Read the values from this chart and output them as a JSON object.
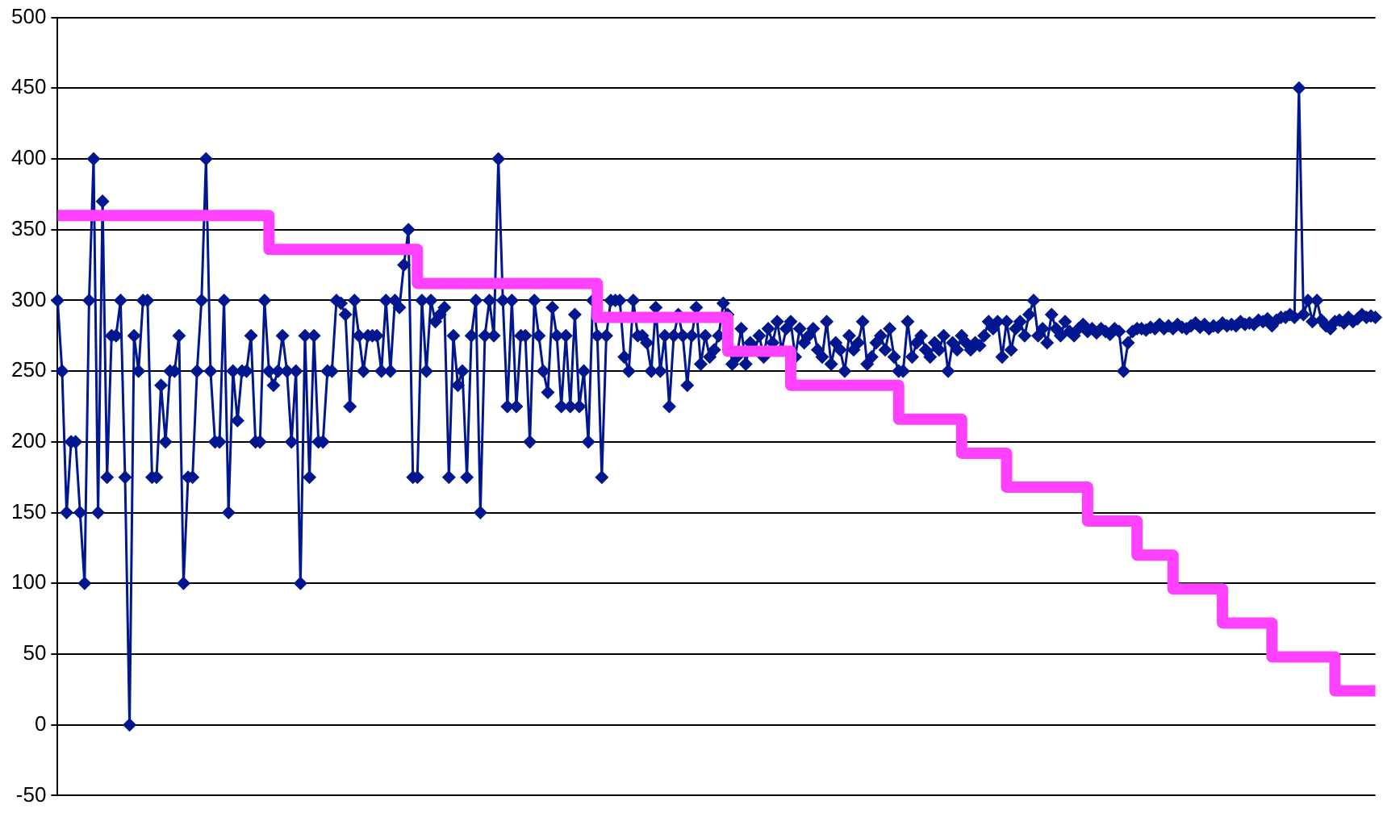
{
  "chart_data": {
    "type": "line",
    "ylim": [
      -50,
      500
    ],
    "yticks": [
      -50,
      0,
      50,
      100,
      150,
      200,
      250,
      300,
      350,
      400,
      450,
      500
    ],
    "grid": "y",
    "legend": false,
    "tick_labels": "y",
    "categories": [
      null,
      null,
      null,
      null,
      null,
      null,
      null,
      null,
      null,
      null,
      null,
      null,
      null,
      null,
      null,
      null,
      null,
      null,
      null,
      null,
      null,
      null,
      null,
      null,
      null,
      null,
      null,
      null,
      null,
      null,
      null,
      null,
      null,
      null,
      null,
      null,
      null,
      null,
      null,
      null,
      null,
      null,
      null,
      null,
      null,
      null,
      null,
      null,
      null,
      null,
      null,
      null,
      null,
      null,
      null,
      null,
      null,
      null,
      null,
      null,
      null,
      null,
      null,
      null,
      null,
      null,
      null,
      null,
      null,
      null,
      null,
      null,
      null,
      null,
      null,
      null,
      null,
      null,
      null,
      null,
      null,
      null,
      null,
      null,
      null,
      null,
      null,
      null,
      null,
      null,
      null,
      null,
      null,
      null,
      null,
      null,
      null,
      null,
      null,
      null,
      null,
      null,
      null,
      null,
      null,
      null,
      null,
      null,
      null,
      null,
      null,
      null,
      null,
      null,
      null,
      null,
      null,
      null,
      null,
      null,
      null,
      null,
      null,
      null,
      null,
      null,
      null,
      null,
      null,
      null,
      null,
      null,
      null,
      null,
      null,
      null,
      null,
      null,
      null,
      null,
      null,
      null,
      null,
      null,
      null,
      null,
      null,
      null,
      null,
      null,
      null,
      null,
      null,
      null,
      null,
      null,
      null,
      null,
      null,
      null,
      null,
      null,
      null,
      null,
      null,
      null,
      null,
      null,
      null,
      null,
      null,
      null,
      null,
      null,
      null,
      null,
      null,
      null,
      null,
      null,
      null,
      null,
      null,
      null,
      null,
      null,
      null,
      null,
      null,
      null,
      null,
      null,
      null,
      null,
      null,
      null,
      null,
      null,
      null,
      null,
      null,
      null,
      null,
      null,
      null,
      null,
      null,
      null,
      null,
      null,
      null,
      null,
      null,
      null,
      null,
      null,
      null,
      null,
      null,
      null,
      null,
      null,
      null,
      null,
      null,
      null,
      null,
      null,
      null,
      null,
      null,
      null,
      null,
      null,
      null,
      null,
      null,
      null,
      null,
      null,
      null,
      null,
      null,
      null,
      null,
      null,
      null,
      null,
      null,
      null,
      null,
      null,
      null,
      null,
      null,
      null,
      null,
      null,
      null,
      null,
      null,
      null,
      null,
      null,
      null,
      null,
      null,
      null,
      null,
      null,
      null,
      null,
      null,
      null,
      null,
      null,
      null,
      null,
      null,
      null,
      null,
      null,
      null,
      null,
      null,
      null,
      null,
      null,
      null,
      null,
      null,
      null,
      null,
      null
    ],
    "series": [
      {
        "color": "#00178f",
        "marker": "diamond",
        "line_style": "solid",
        "values": [
          300,
          250,
          150,
          200,
          200,
          150,
          100,
          300,
          400,
          150,
          370,
          175,
          275,
          275,
          300,
          175,
          0,
          275,
          250,
          300,
          300,
          175,
          175,
          240,
          200,
          250,
          250,
          275,
          100,
          175,
          175,
          250,
          300,
          400,
          250,
          200,
          200,
          300,
          150,
          250,
          215,
          250,
          250,
          275,
          200,
          200,
          300,
          250,
          240,
          250,
          275,
          250,
          200,
          250,
          100,
          275,
          175,
          275,
          200,
          200,
          250,
          250,
          300,
          298,
          290,
          225,
          300,
          275,
          250,
          275,
          275,
          275,
          250,
          300,
          250,
          300,
          295,
          325,
          350,
          175,
          175,
          300,
          250,
          300,
          285,
          290,
          295,
          175,
          275,
          240,
          250,
          175,
          275,
          300,
          150,
          275,
          300,
          275,
          400,
          300,
          225,
          300,
          225,
          275,
          275,
          200,
          300,
          275,
          250,
          235,
          295,
          275,
          225,
          275,
          225,
          290,
          225,
          250,
          200,
          300,
          275,
          175,
          275,
          300,
          300,
          300,
          260,
          250,
          300,
          275,
          275,
          270,
          250,
          295,
          250,
          275,
          225,
          275,
          290,
          275,
          240,
          275,
          295,
          255,
          275,
          260,
          265,
          275,
          298,
          290,
          255,
          260,
          280,
          255,
          270,
          265,
          275,
          260,
          280,
          270,
          285,
          265,
          280,
          285,
          260,
          280,
          270,
          275,
          280,
          265,
          260,
          285,
          255,
          270,
          265,
          250,
          275,
          265,
          270,
          285,
          255,
          260,
          270,
          275,
          265,
          280,
          260,
          250,
          250,
          285,
          260,
          270,
          275,
          265,
          260,
          270,
          265,
          275,
          250,
          270,
          265,
          275,
          270,
          265,
          270,
          268,
          275,
          285,
          280,
          285,
          260,
          285,
          265,
          280,
          285,
          275,
          290,
          300,
          275,
          280,
          270,
          290,
          280,
          275,
          285,
          278,
          275,
          280,
          283,
          278,
          280,
          277,
          280,
          278,
          276,
          280,
          278,
          250,
          270,
          278,
          280,
          280,
          279,
          281,
          280,
          283,
          280,
          282,
          280,
          283,
          281,
          280,
          282,
          284,
          281,
          283,
          280,
          282,
          281,
          284,
          282,
          283,
          282,
          285,
          283,
          284,
          283,
          286,
          285,
          287,
          282,
          286,
          288,
          288,
          290,
          288,
          450,
          290,
          300,
          285,
          300,
          286,
          282,
          280,
          285,
          286,
          284,
          288,
          285,
          287,
          290,
          288,
          289,
          288
        ]
      },
      {
        "type": "step",
        "color": "#ff40ff",
        "marker": "none",
        "line_style": "solid",
        "values": [
          360,
          360,
          360,
          360,
          360,
          360,
          360,
          360,
          360,
          360,
          360,
          360,
          360,
          360,
          360,
          360,
          360,
          360,
          360,
          360,
          360,
          360,
          360,
          360,
          360,
          360,
          360,
          360,
          360,
          360,
          360,
          360,
          360,
          360,
          360,
          360,
          360,
          360,
          360,
          360,
          360,
          360,
          360,
          360,
          360,
          360,
          360,
          360,
          336,
          336,
          336,
          336,
          336,
          336,
          336,
          336,
          336,
          336,
          336,
          336,
          336,
          336,
          336,
          336,
          336,
          336,
          336,
          336,
          336,
          336,
          336,
          336,
          336,
          336,
          336,
          336,
          336,
          336,
          336,
          336,
          336,
          312,
          312,
          312,
          312,
          312,
          312,
          312,
          312,
          312,
          312,
          312,
          312,
          312,
          312,
          312,
          312,
          312,
          312,
          312,
          312,
          312,
          312,
          312,
          312,
          312,
          312,
          312,
          312,
          312,
          312,
          312,
          312,
          312,
          312,
          312,
          312,
          312,
          312,
          312,
          312,
          288,
          288,
          288,
          288,
          288,
          288,
          288,
          288,
          288,
          288,
          288,
          288,
          288,
          288,
          288,
          288,
          288,
          288,
          288,
          288,
          288,
          288,
          288,
          288,
          288,
          288,
          288,
          288,
          288,
          264,
          264,
          264,
          264,
          264,
          264,
          264,
          264,
          264,
          264,
          264,
          264,
          264,
          264,
          240,
          240,
          240,
          240,
          240,
          240,
          240,
          240,
          240,
          240,
          240,
          240,
          240,
          240,
          240,
          240,
          240,
          240,
          240,
          240,
          240,
          240,
          240,
          240,
          216,
          216,
          216,
          216,
          216,
          216,
          216,
          216,
          216,
          216,
          216,
          216,
          216,
          216,
          192,
          192,
          192,
          192,
          192,
          192,
          192,
          192,
          192,
          192,
          168,
          168,
          168,
          168,
          168,
          168,
          168,
          168,
          168,
          168,
          168,
          168,
          168,
          168,
          168,
          168,
          168,
          168,
          144,
          144,
          144,
          144,
          144,
          144,
          144,
          144,
          144,
          144,
          144,
          120,
          120,
          120,
          120,
          120,
          120,
          120,
          120,
          96,
          96,
          96,
          96,
          96,
          96,
          96,
          96,
          96,
          96,
          96,
          72,
          72,
          72,
          72,
          72,
          72,
          72,
          72,
          72,
          72,
          72,
          48,
          48,
          48,
          48,
          48,
          48,
          48,
          48,
          48,
          48,
          48,
          48,
          48,
          48,
          24,
          24,
          24,
          24,
          24,
          24,
          24,
          24,
          24
        ]
      }
    ]
  }
}
